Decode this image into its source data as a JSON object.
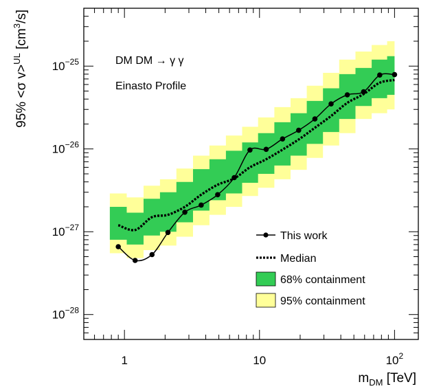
{
  "chart_data": {
    "type": "line",
    "x_scale": "log",
    "y_scale": "log",
    "xlim": [
      0.5,
      150
    ],
    "ylim": [
      5e-29,
      5e-25
    ],
    "x_ticks": [
      {
        "value": 1,
        "label": "1"
      },
      {
        "value": 10,
        "label": "10"
      },
      {
        "value": 100,
        "label": "10",
        "sup": "2"
      }
    ],
    "y_ticks": [
      {
        "value": 1e-28,
        "label": "10",
        "sup": "−28"
      },
      {
        "value": 1e-27,
        "label": "10",
        "sup": "−27"
      },
      {
        "value": 1e-26,
        "label": "10",
        "sup": "−26"
      },
      {
        "value": 1e-25,
        "label": "10",
        "sup": "−25"
      }
    ],
    "xlabel": {
      "main": "m",
      "sub": "DM",
      "rest": " [TeV]"
    },
    "ylabel": {
      "main": "95% <σ v>",
      "sup1": "UL",
      "mid": " [cm",
      "sup2": "3",
      "rest": "/s]"
    },
    "annotations": [
      "DM DM → γ γ",
      "Einasto Profile"
    ],
    "legend_position": "bottom-right",
    "legend": {
      "this_work": "This work",
      "median": "Median",
      "c68": "68% containment",
      "c95": "95% containment"
    },
    "x": [
      0.9,
      1.2,
      1.6,
      2.1,
      2.8,
      3.7,
      4.9,
      6.5,
      8.5,
      11.2,
      14.8,
      19.5,
      25.7,
      33.9,
      44.7,
      59,
      77.7,
      100
    ],
    "series": [
      {
        "name": "This work",
        "values": [
          6.6e-28,
          4.5e-28,
          5.3e-28,
          9.8e-28,
          1.72e-27,
          2.1e-27,
          2.8e-27,
          4.5e-27,
          9.7e-27,
          9.9e-27,
          1.32e-26,
          1.68e-26,
          2.3e-26,
          3.5e-26,
          4.5e-26,
          4.9e-26,
          7.8e-26,
          7.9e-26
        ]
      },
      {
        "name": "Median",
        "values": [
          1.2e-27,
          1.05e-27,
          1.5e-27,
          1.6e-27,
          2e-27,
          2.8e-27,
          3.7e-27,
          4.4e-27,
          6e-27,
          7.5e-27,
          9.8e-27,
          1.3e-26,
          1.8e-26,
          2.5e-26,
          3.6e-26,
          4.6e-26,
          6.3e-26,
          6.8e-26
        ]
      },
      {
        "name": "68% containment",
        "low": [
          8e-28,
          7e-28,
          9e-28,
          1e-27,
          1.3e-27,
          1.8e-27,
          2.4e-27,
          2.9e-27,
          3.9e-27,
          5e-27,
          6.3e-27,
          8.3e-27,
          1.15e-26,
          1.6e-26,
          2.3e-26,
          3.3e-26,
          4.1e-26,
          4.5e-26
        ],
        "high": [
          2e-27,
          1.7e-27,
          2.5e-27,
          3e-27,
          4e-27,
          5.7e-27,
          7.5e-27,
          9.5e-27,
          1.2e-26,
          1.55e-26,
          2.1e-26,
          2.7e-26,
          3.8e-26,
          5.4e-26,
          8e-26,
          9.5e-26,
          1.2e-25,
          1.32e-25
        ]
      },
      {
        "name": "95% containment",
        "low": [
          5.5e-28,
          4.8e-28,
          6e-28,
          6.8e-28,
          8.7e-28,
          1.2e-27,
          1.6e-27,
          2e-27,
          2.7e-27,
          3.4e-27,
          4.3e-27,
          5.6e-27,
          7.8e-27,
          1.1e-26,
          1.55e-26,
          2.3e-26,
          2.7e-26,
          3e-26
        ],
        "high": [
          2.9e-27,
          2.6e-27,
          3.6e-27,
          4.3e-27,
          5.8e-27,
          8.3e-27,
          1.1e-26,
          1.45e-26,
          1.85e-26,
          2.4e-26,
          3.2e-26,
          4.1e-26,
          5.8e-26,
          8.3e-26,
          1.2e-25,
          1.5e-25,
          1.8e-25,
          2e-25
        ]
      }
    ],
    "colors": {
      "c95": "#ffff99",
      "c68": "#33cc55",
      "line": "#000000"
    }
  }
}
